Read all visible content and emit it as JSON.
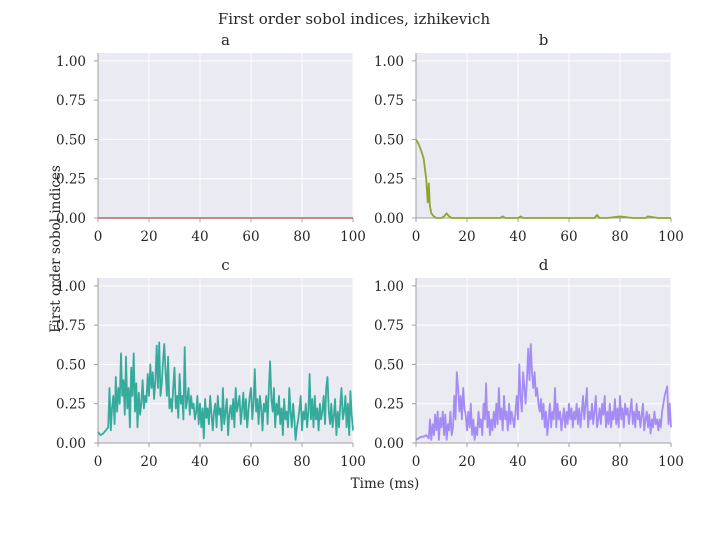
{
  "figure": {
    "title": "First order sobol indices, izhikevich",
    "xlabel": "Time (ms)",
    "ylabel": "First order sobol indices"
  },
  "chart_data": [
    {
      "type": "line",
      "title": "a",
      "xlim": [
        0,
        100
      ],
      "ylim": [
        0,
        1.05
      ],
      "xticks": [
        "0",
        "20",
        "40",
        "60",
        "80",
        "100"
      ],
      "yticks": [
        "0.00",
        "0.25",
        "0.50",
        "0.75",
        "1.00"
      ],
      "grid": true,
      "series": [
        {
          "color": "#c07878",
          "x": [
            0,
            100
          ],
          "y": [
            0.0,
            0.0
          ]
        }
      ]
    },
    {
      "type": "line",
      "title": "b",
      "xlim": [
        0,
        100
      ],
      "ylim": [
        0,
        1.05
      ],
      "xticks": [
        "0",
        "20",
        "40",
        "60",
        "80",
        "100"
      ],
      "yticks": [
        "0.00",
        "0.25",
        "0.50",
        "0.75",
        "1.00"
      ],
      "grid": true,
      "series": [
        {
          "color": "#8ea52c",
          "x": [
            0,
            1,
            2,
            3,
            4,
            4.6,
            5,
            5.4,
            6,
            7,
            8,
            10,
            11,
            12,
            13,
            14,
            16,
            20,
            25,
            30,
            33,
            34,
            35,
            40,
            41,
            42,
            45,
            50,
            55,
            60,
            65,
            70,
            71,
            72,
            73,
            75,
            80,
            85,
            90,
            91,
            95,
            100
          ],
          "y": [
            0.5,
            0.47,
            0.43,
            0.38,
            0.25,
            0.1,
            0.22,
            0.08,
            0.03,
            0.01,
            0.0,
            0.0,
            0.01,
            0.03,
            0.01,
            0.0,
            0.0,
            0.0,
            0.0,
            0.0,
            0.0,
            0.01,
            0.0,
            0.0,
            0.01,
            0.0,
            0.0,
            0.0,
            0.0,
            0.0,
            0.0,
            0.0,
            0.02,
            0.0,
            0.0,
            0.0,
            0.01,
            0.0,
            0.0,
            0.01,
            0.0,
            0.0
          ]
        }
      ]
    },
    {
      "type": "line",
      "title": "c",
      "xlim": [
        0,
        100
      ],
      "ylim": [
        0,
        1.05
      ],
      "xticks": [
        "0",
        "20",
        "40",
        "60",
        "80",
        "100"
      ],
      "yticks": [
        "0.00",
        "0.25",
        "0.50",
        "0.75",
        "1.00"
      ],
      "grid": true,
      "series": [
        {
          "color": "#36ab9c",
          "x": [
            0,
            1,
            2,
            3,
            4,
            4.5,
            5,
            5.5,
            6,
            6.5,
            7,
            7.5,
            8,
            8.5,
            9,
            9.5,
            10,
            10.5,
            11,
            11.5,
            12,
            12.5,
            13,
            13.5,
            14,
            14.5,
            15,
            15.5,
            16,
            16.5,
            17,
            17.5,
            18,
            18.5,
            19,
            19.5,
            20,
            20.5,
            21,
            21.5,
            22,
            22.5,
            23,
            23.5,
            24,
            24.5,
            25,
            25.5,
            26,
            26.5,
            27,
            27.5,
            28,
            28.5,
            29,
            29.5,
            30,
            30.5,
            31,
            31.5,
            32,
            32.5,
            33,
            33.5,
            34,
            34.5,
            35,
            35.5,
            36,
            36.5,
            37,
            37.5,
            38,
            38.5,
            39,
            39.5,
            40,
            40.5,
            41,
            41.5,
            42,
            42.5,
            43,
            43.5,
            44,
            44.5,
            45,
            45.5,
            46,
            46.5,
            47,
            47.5,
            48,
            48.5,
            49,
            49.5,
            50,
            50.5,
            51,
            51.5,
            52,
            52.5,
            53,
            53.5,
            54,
            54.5,
            55,
            55.5,
            56,
            56.5,
            57,
            57.5,
            58,
            58.5,
            59,
            59.5,
            60,
            60.5,
            61,
            61.5,
            62,
            62.5,
            63,
            63.5,
            64,
            64.5,
            65,
            65.5,
            66,
            66.5,
            67,
            67.5,
            68,
            68.5,
            69,
            69.5,
            70,
            70.5,
            71,
            71.5,
            72,
            72.5,
            73,
            73.5,
            74,
            74.5,
            75,
            75.5,
            76,
            76.5,
            77,
            77.5,
            78,
            78.5,
            79,
            79.5,
            80,
            80.5,
            81,
            81.5,
            82,
            82.5,
            83,
            83.5,
            84,
            84.5,
            85,
            85.5,
            86,
            86.5,
            87,
            87.5,
            88,
            88.5,
            89,
            89.5,
            90,
            90.5,
            91,
            91.5,
            92,
            92.5,
            93,
            93.5,
            94,
            94.5,
            95,
            95.5,
            96,
            96.5,
            97,
            97.5,
            98,
            98.5,
            99,
            99.5,
            100
          ],
          "y": [
            0.07,
            0.05,
            0.06,
            0.08,
            0.1,
            0.35,
            0.08,
            0.22,
            0.3,
            0.12,
            0.42,
            0.2,
            0.35,
            0.25,
            0.57,
            0.3,
            0.4,
            0.18,
            0.55,
            0.22,
            0.35,
            0.1,
            0.48,
            0.3,
            0.57,
            0.2,
            0.38,
            0.1,
            0.32,
            0.18,
            0.25,
            0.4,
            0.22,
            0.3,
            0.26,
            0.44,
            0.3,
            0.5,
            0.35,
            0.45,
            0.28,
            0.4,
            0.62,
            0.35,
            0.64,
            0.3,
            0.38,
            0.52,
            0.63,
            0.45,
            0.3,
            0.55,
            0.22,
            0.28,
            0.2,
            0.35,
            0.48,
            0.22,
            0.3,
            0.16,
            0.44,
            0.25,
            0.3,
            0.15,
            0.61,
            0.22,
            0.28,
            0.35,
            0.18,
            0.3,
            0.22,
            0.25,
            0.15,
            0.2,
            0.3,
            0.12,
            0.25,
            0.1,
            0.22,
            0.03,
            0.28,
            0.16,
            0.22,
            0.12,
            0.3,
            0.18,
            0.08,
            0.2,
            0.25,
            0.1,
            0.3,
            0.18,
            0.22,
            0.08,
            0.35,
            0.12,
            0.2,
            0.28,
            0.05,
            0.18,
            0.24,
            0.15,
            0.28,
            0.1,
            0.35,
            0.2,
            0.25,
            0.3,
            0.12,
            0.22,
            0.32,
            0.15,
            0.28,
            0.1,
            0.2,
            0.3,
            0.35,
            0.15,
            0.25,
            0.47,
            0.2,
            0.28,
            0.12,
            0.3,
            0.22,
            0.08,
            0.25,
            0.2,
            0.3,
            0.12,
            0.35,
            0.52,
            0.28,
            0.2,
            0.35,
            0.1,
            0.25,
            0.18,
            0.3,
            0.12,
            0.22,
            0.05,
            0.28,
            0.15,
            0.2,
            0.1,
            0.35,
            0.2,
            0.1,
            0.25,
            0.15,
            0.02,
            0.1,
            0.15,
            0.22,
            0.3,
            0.08,
            0.2,
            0.15,
            0.25,
            0.1,
            0.2,
            0.44,
            0.15,
            0.28,
            0.1,
            0.3,
            0.15,
            0.22,
            0.08,
            0.25,
            0.15,
            0.2,
            0.3,
            0.12,
            0.35,
            0.42,
            0.2,
            0.12,
            0.25,
            0.1,
            0.18,
            0.28,
            0.05,
            0.2,
            0.1,
            0.25,
            0.35,
            0.15,
            0.2,
            0.3,
            0.1,
            0.25,
            0.05,
            0.33,
            0.18,
            0.08
          ]
        }
      ]
    },
    {
      "type": "line",
      "title": "d",
      "xlim": [
        0,
        100
      ],
      "ylim": [
        0,
        1.05
      ],
      "xticks": [
        "0",
        "20",
        "40",
        "60",
        "80",
        "100"
      ],
      "yticks": [
        "0.00",
        "0.25",
        "0.50",
        "0.75",
        "1.00"
      ],
      "grid": true,
      "series": [
        {
          "color": "#a48cf4",
          "x": [
            0,
            1,
            2,
            3,
            4,
            5,
            5.5,
            6,
            6.5,
            7,
            7.5,
            8,
            8.5,
            9,
            9.5,
            10,
            10.5,
            11,
            11.5,
            12,
            12.5,
            13,
            13.5,
            14,
            14.5,
            15,
            15.5,
            16,
            16.5,
            17,
            17.5,
            18,
            18.5,
            19,
            19.5,
            20,
            20.5,
            21,
            21.5,
            22,
            22.5,
            23,
            23.5,
            24,
            24.5,
            25,
            25.5,
            26,
            26.5,
            27,
            27.5,
            28,
            28.5,
            29,
            29.5,
            30,
            30.5,
            31,
            31.5,
            32,
            32.5,
            33,
            33.5,
            34,
            34.5,
            35,
            35.5,
            36,
            36.5,
            37,
            37.5,
            38,
            38.5,
            39,
            39.5,
            40,
            40.5,
            41,
            41.5,
            42,
            42.5,
            43,
            43.5,
            44,
            44.5,
            45,
            45.5,
            46,
            46.5,
            47,
            47.5,
            48,
            48.5,
            49,
            49.5,
            50,
            50.5,
            51,
            51.5,
            52,
            52.5,
            53,
            53.5,
            54,
            54.5,
            55,
            55.5,
            56,
            56.5,
            57,
            57.5,
            58,
            58.5,
            59,
            59.5,
            60,
            60.5,
            61,
            61.5,
            62,
            62.5,
            63,
            63.5,
            64,
            64.5,
            65,
            65.5,
            66,
            66.5,
            67,
            67.5,
            68,
            68.5,
            69,
            69.5,
            70,
            70.5,
            71,
            71.5,
            72,
            72.5,
            73,
            73.5,
            74,
            74.5,
            75,
            75.5,
            76,
            76.5,
            77,
            77.5,
            78,
            78.5,
            79,
            79.5,
            80,
            80.5,
            81,
            81.5,
            82,
            82.5,
            83,
            83.5,
            84,
            84.5,
            85,
            85.5,
            86,
            86.5,
            87,
            87.5,
            88,
            88.5,
            89,
            89.5,
            90,
            90.5,
            91,
            91.5,
            92,
            92.5,
            93,
            93.5,
            94,
            94.5,
            95,
            95.5,
            96,
            96.5,
            97,
            97.5,
            98,
            98.5,
            99,
            99.5,
            100
          ],
          "y": [
            0.02,
            0.03,
            0.04,
            0.04,
            0.05,
            0.03,
            0.15,
            0.02,
            0.12,
            0.05,
            0.18,
            0.08,
            0.2,
            0.02,
            0.16,
            0.1,
            0.2,
            0.05,
            0.18,
            0.02,
            0.12,
            0.08,
            0.2,
            0.05,
            0.1,
            0.3,
            0.15,
            0.45,
            0.35,
            0.2,
            0.3,
            0.15,
            0.35,
            0.22,
            0.18,
            0.08,
            0.2,
            0.1,
            0.25,
            0.05,
            0.15,
            0.02,
            0.1,
            0.05,
            0.2,
            0.1,
            0.15,
            0.05,
            0.25,
            0.15,
            0.38,
            0.1,
            0.2,
            0.05,
            0.15,
            0.08,
            0.2,
            0.1,
            0.25,
            0.12,
            0.35,
            0.15,
            0.22,
            0.08,
            0.3,
            0.15,
            0.2,
            0.08,
            0.25,
            0.12,
            0.2,
            0.15,
            0.1,
            0.2,
            0.3,
            0.15,
            0.5,
            0.3,
            0.2,
            0.45,
            0.35,
            0.25,
            0.4,
            0.6,
            0.4,
            0.63,
            0.45,
            0.35,
            0.45,
            0.3,
            0.35,
            0.25,
            0.2,
            0.28,
            0.15,
            0.25,
            0.1,
            0.2,
            0.05,
            0.15,
            0.25,
            0.1,
            0.2,
            0.15,
            0.35,
            0.1,
            0.25,
            0.15,
            0.2,
            0.08,
            0.15,
            0.22,
            0.1,
            0.2,
            0.12,
            0.25,
            0.15,
            0.22,
            0.1,
            0.2,
            0.15,
            0.25,
            0.12,
            0.22,
            0.1,
            0.2,
            0.3,
            0.15,
            0.25,
            0.35,
            0.1,
            0.2,
            0.15,
            0.25,
            0.12,
            0.2,
            0.3,
            0.1,
            0.15,
            0.22,
            0.12,
            0.25,
            0.18,
            0.3,
            0.1,
            0.2,
            0.12,
            0.25,
            0.1,
            0.2,
            0.15,
            0.28,
            0.12,
            0.22,
            0.1,
            0.3,
            0.15,
            0.22,
            0.1,
            0.25,
            0.18,
            0.22,
            0.12,
            0.2,
            0.28,
            0.12,
            0.2,
            0.1,
            0.25,
            0.15,
            0.2,
            0.1,
            0.18,
            0.25,
            0.08,
            0.15,
            0.2,
            0.1,
            0.18,
            0.06,
            0.15,
            0.1,
            0.2,
            0.12,
            0.15,
            0.08,
            0.15,
            0.1,
            0.2,
            0.25,
            0.3,
            0.33,
            0.36,
            0.12,
            0.25,
            0.1
          ]
        }
      ]
    }
  ]
}
